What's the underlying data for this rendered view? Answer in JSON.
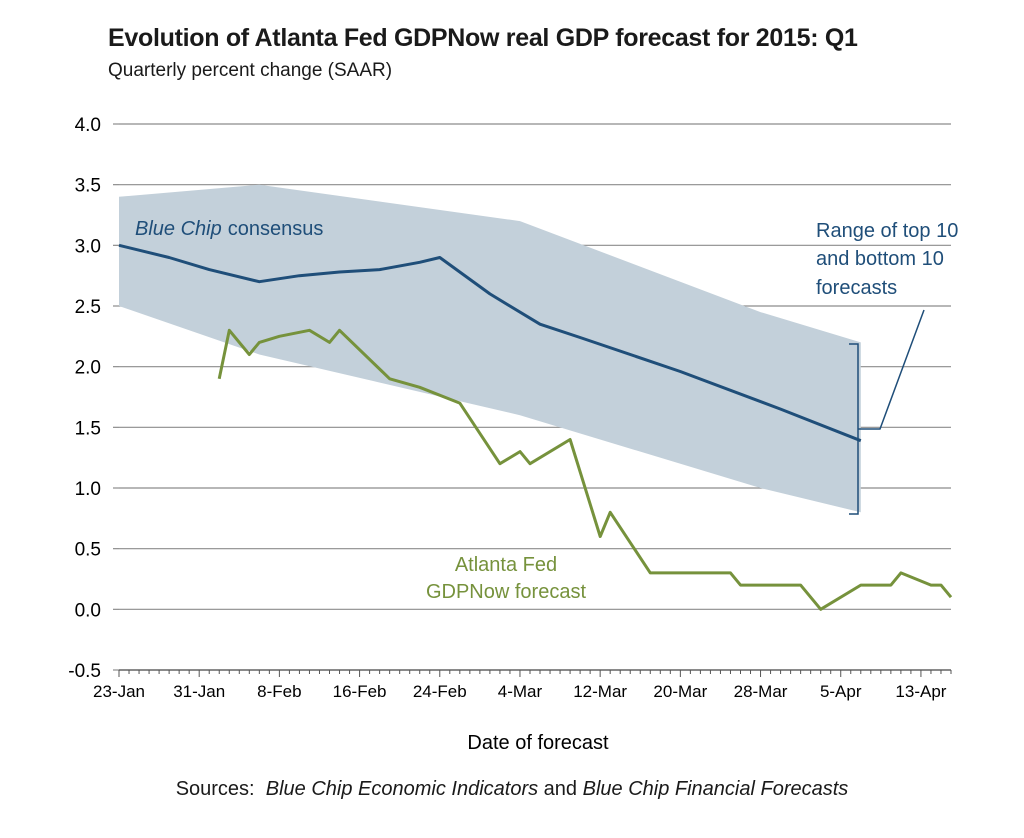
{
  "title": "Evolution of Atlanta Fed GDPNow real GDP forecast for 2015: Q1",
  "subtitle": "Quarterly percent change (SAAR)",
  "xlabel": "Date of forecast",
  "sources": {
    "prefix": "Sources:",
    "source1": "Blue Chip Economic Indicators",
    "conjunction": "and",
    "source2": "Blue Chip Financial Forecasts"
  },
  "colors": {
    "band": "#c3d0da",
    "consensus": "#1f4e79",
    "gdpnow": "#76923c",
    "grid": "#8c8c8c"
  },
  "chart_data": {
    "type": "line",
    "title": "Evolution of Atlanta Fed GDPNow real GDP forecast for 2015: Q1",
    "subtitle": "Quarterly percent change (SAAR)",
    "xlabel": "Date of forecast",
    "ylabel": "",
    "ylim": [
      -0.5,
      4.0
    ],
    "y_ticks": [
      "-0.5",
      "0.0",
      "0.5",
      "1.0",
      "1.5",
      "2.0",
      "2.5",
      "3.0",
      "3.5",
      "4.0"
    ],
    "x_ticks": [
      "2015-01-23",
      "2015-01-31",
      "2015-02-08",
      "2015-02-16",
      "2015-02-24",
      "2015-03-04",
      "2015-03-12",
      "2015-03-20",
      "2015-03-28",
      "2015-04-05",
      "2015-04-13"
    ],
    "x_tick_labels": [
      "23-Jan",
      "31-Jan",
      "8-Feb",
      "16-Feb",
      "24-Feb",
      "4-Mar",
      "12-Mar",
      "20-Mar",
      "28-Mar",
      "5-Apr",
      "13-Apr"
    ],
    "xlim": [
      "2015-01-23",
      "2015-04-16"
    ],
    "grid": true,
    "series": [
      {
        "name": "Blue Chip consensus",
        "label_italic": "Blue Chip",
        "label_rest": "consensus",
        "type": "line",
        "x": [
          "2015-01-23",
          "2015-01-28",
          "2015-02-01",
          "2015-02-06",
          "2015-02-10",
          "2015-02-14",
          "2015-02-18",
          "2015-02-22",
          "2015-02-24",
          "2015-03-01",
          "2015-03-06",
          "2015-03-10",
          "2015-03-20",
          "2015-03-30",
          "2015-04-07"
        ],
        "values": [
          3.0,
          2.9,
          2.8,
          2.7,
          2.75,
          2.78,
          2.8,
          2.86,
          2.9,
          2.6,
          2.35,
          2.24,
          1.96,
          1.65,
          1.39
        ]
      },
      {
        "name": "Atlanta Fed GDPNow forecast",
        "label_lines": [
          "Atlanta Fed",
          "GDPNow forecast"
        ],
        "type": "line",
        "x": [
          "2015-02-02",
          "2015-02-03",
          "2015-02-05",
          "2015-02-06",
          "2015-02-08",
          "2015-02-11",
          "2015-02-13",
          "2015-02-14",
          "2015-02-19",
          "2015-02-22",
          "2015-02-26",
          "2015-03-02",
          "2015-03-04",
          "2015-03-05",
          "2015-03-09",
          "2015-03-12",
          "2015-03-13",
          "2015-03-17",
          "2015-03-20",
          "2015-03-25",
          "2015-03-26",
          "2015-04-01",
          "2015-04-03",
          "2015-04-07",
          "2015-04-10",
          "2015-04-11",
          "2015-04-14",
          "2015-04-15",
          "2015-04-16"
        ],
        "values": [
          1.9,
          2.3,
          2.1,
          2.2,
          2.25,
          2.3,
          2.2,
          2.3,
          1.9,
          1.83,
          1.7,
          1.2,
          1.3,
          1.2,
          1.4,
          0.6,
          0.8,
          0.3,
          0.3,
          0.3,
          0.2,
          0.2,
          0.0,
          0.2,
          0.2,
          0.3,
          0.2,
          0.2,
          0.1
        ]
      },
      {
        "name": "Range of top 10 and bottom 10 forecasts",
        "label_lines": [
          "Range of top 10",
          "and bottom 10",
          "forecasts"
        ],
        "type": "area",
        "x": [
          "2015-01-23",
          "2015-02-06",
          "2015-03-04",
          "2015-03-28",
          "2015-04-07"
        ],
        "upper": [
          3.4,
          3.5,
          3.2,
          2.45,
          2.2
        ],
        "lower": [
          2.5,
          2.1,
          1.6,
          1.0,
          0.8
        ]
      }
    ]
  }
}
